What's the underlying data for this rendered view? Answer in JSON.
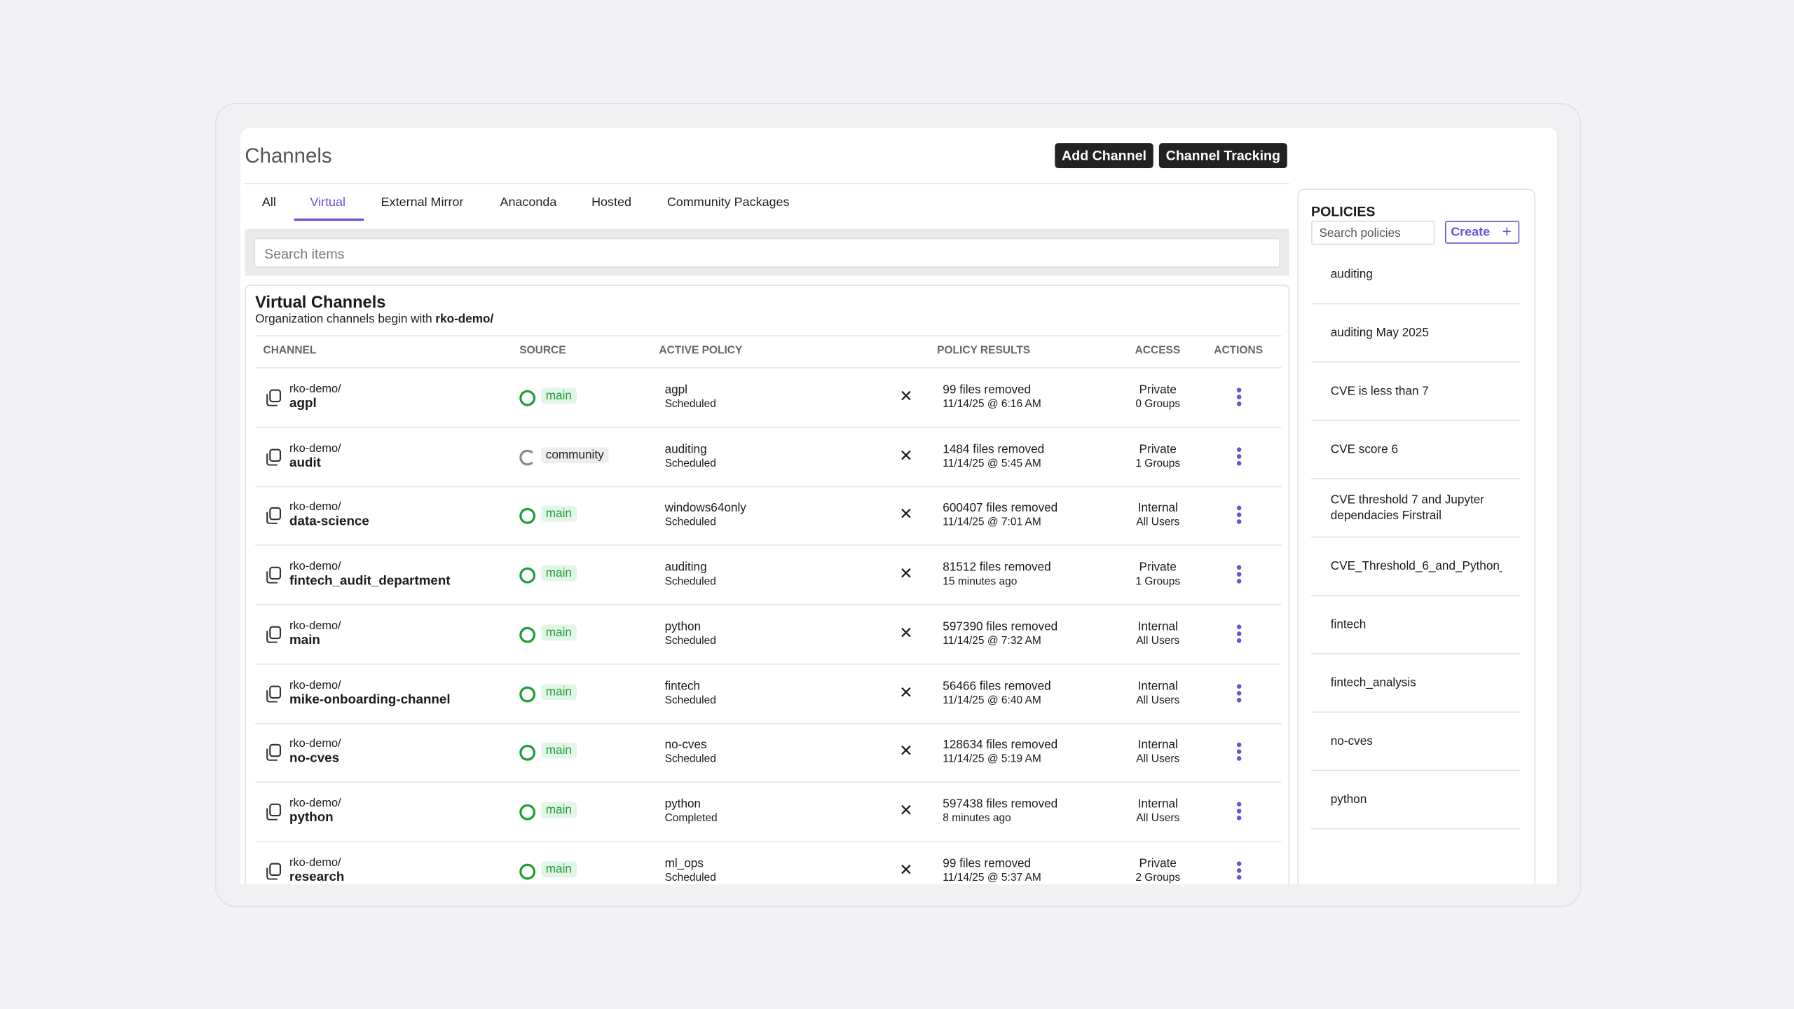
{
  "header": {
    "title": "Channels",
    "buttons": [
      "Add Channel",
      "Channel Tracking"
    ]
  },
  "tabs": {
    "items": [
      "All",
      "Virtual",
      "External Mirror",
      "Anaconda",
      "Hosted",
      "Community Packages"
    ],
    "active": 1
  },
  "search": {
    "placeholder": "Search items"
  },
  "section": {
    "title": "Virtual Channels",
    "subtitle": "Organization channels begin with",
    "subtitle_strong": "rko-demo/"
  },
  "table": {
    "columns": [
      "CHANNEL",
      "SOURCE",
      "ACTIVE POLICY",
      "POLICY RESULTS",
      "ACCESS",
      "ACTIONS"
    ],
    "rows": [
      {
        "prefix": "rko-demo/",
        "name": "agpl",
        "source": "main",
        "source_color": "#1f9d3a",
        "source_bg": "#e3f5e7",
        "policy": "agpl",
        "policy_status": "Scheduled",
        "results": "99 files removed",
        "results_time": "11/14/25 @ 6:16 AM",
        "access": "Private",
        "access_detail": "0 Groups"
      },
      {
        "prefix": "rko-demo/",
        "name": "audit",
        "source": "community",
        "source_color": "#8a8a8a",
        "source_bg": "#eeeeee",
        "policy": "auditing",
        "policy_status": "Scheduled",
        "results": "1484 files removed",
        "results_time": "11/14/25 @ 5:45 AM",
        "access": "Private",
        "access_detail": "1 Groups"
      },
      {
        "prefix": "rko-demo/",
        "name": "data-science",
        "source": "main",
        "source_color": "#1f9d3a",
        "source_bg": "#e3f5e7",
        "policy": "windows64only",
        "policy_status": "Scheduled",
        "results": "600407 files removed",
        "results_time": "11/14/25 @ 7:01 AM",
        "access": "Internal",
        "access_detail": "All Users"
      },
      {
        "prefix": "rko-demo/",
        "name": "fintech_audit_department",
        "source": "main",
        "source_color": "#1f9d3a",
        "source_bg": "#e3f5e7",
        "policy": "auditing",
        "policy_status": "Scheduled",
        "results": "81512 files removed",
        "results_time": "15 minutes ago",
        "access": "Private",
        "access_detail": "1 Groups"
      },
      {
        "prefix": "rko-demo/",
        "name": "main",
        "source": "main",
        "source_color": "#1f9d3a",
        "source_bg": "#e3f5e7",
        "policy": "python",
        "policy_status": "Scheduled",
        "results": "597390 files removed",
        "results_time": "11/14/25 @ 7:32 AM",
        "access": "Internal",
        "access_detail": "All Users"
      },
      {
        "prefix": "rko-demo/",
        "name": "mike-onboarding-channel",
        "source": "main",
        "source_color": "#1f9d3a",
        "source_bg": "#e3f5e7",
        "policy": "fintech",
        "policy_status": "Scheduled",
        "results": "56466 files removed",
        "results_time": "11/14/25 @ 6:40 AM",
        "access": "Internal",
        "access_detail": "All Users"
      },
      {
        "prefix": "rko-demo/",
        "name": "no-cves",
        "source": "main",
        "source_color": "#1f9d3a",
        "source_bg": "#e3f5e7",
        "policy": "no-cves",
        "policy_status": "Scheduled",
        "results": "128634 files removed",
        "results_time": "11/14/25 @ 5:19 AM",
        "access": "Internal",
        "access_detail": "All Users"
      },
      {
        "prefix": "rko-demo/",
        "name": "python",
        "source": "main",
        "source_color": "#1f9d3a",
        "source_bg": "#e3f5e7",
        "policy": "python",
        "policy_status": "Completed",
        "results": "597438 files removed",
        "results_time": "8 minutes ago",
        "access": "Internal",
        "access_detail": "All Users"
      },
      {
        "prefix": "rko-demo/",
        "name": "research",
        "source": "main",
        "source_color": "#1f9d3a",
        "source_bg": "#e3f5e7",
        "policy": "ml_ops",
        "policy_status": "Scheduled",
        "results": "99 files removed",
        "results_time": "11/14/25 @ 5:37 AM",
        "access": "Private",
        "access_detail": "2 Groups"
      }
    ]
  },
  "policies": {
    "title": "POLICIES",
    "search_placeholder": "Search policies",
    "create": "Create",
    "items": [
      "auditing",
      "auditing May 2025",
      "CVE is less than 7",
      "CVE score 6",
      "CVE threshold 7 and Jupyter dependacies Firstrail",
      "CVE_Threshold_6_and_Python_",
      "fintech",
      "fintech_analysis",
      "no-cves",
      "python"
    ]
  }
}
